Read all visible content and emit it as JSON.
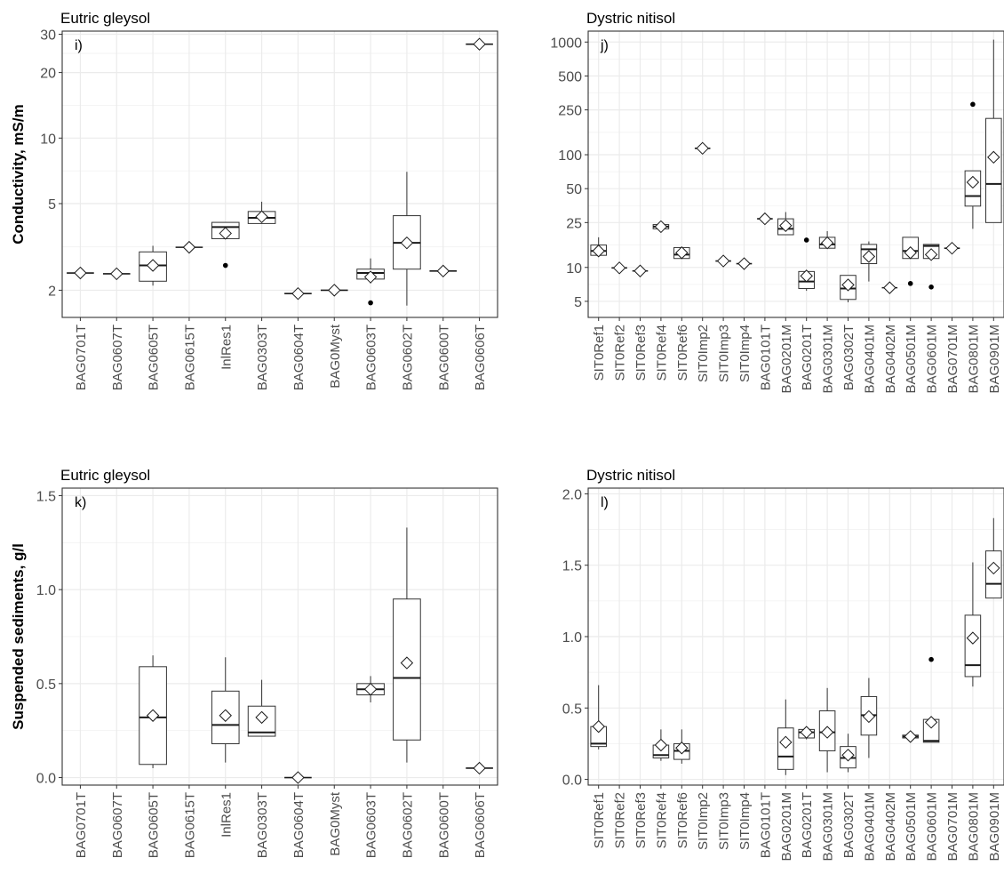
{
  "chart_data": [
    {
      "type": "box",
      "panel": "i)",
      "title": "Eutric gleysol",
      "ylabel": "Conductivity, mS/m",
      "yscale": "log",
      "ylim": [
        1.5,
        31
      ],
      "yticks": [
        2,
        5,
        10,
        20,
        30
      ],
      "categories": [
        "BAG0701T",
        "BAG0607T",
        "BAG0605T",
        "BAG0615T",
        "InlRes1",
        "BAG0303T",
        "BAG0604T",
        "BAG0Myst",
        "BAG0603T",
        "BAG0602T",
        "BAG0600T",
        "BAG0606T"
      ],
      "boxes": [
        {
          "q1": 2.4,
          "median": 2.4,
          "q3": 2.4,
          "lower": 2.4,
          "upper": 2.4,
          "mean": 2.4,
          "outliers": []
        },
        {
          "q1": 2.38,
          "median": 2.38,
          "q3": 2.38,
          "lower": 2.38,
          "upper": 2.38,
          "mean": 2.38,
          "outliers": []
        },
        {
          "q1": 2.2,
          "median": 2.6,
          "q3": 3.0,
          "lower": 2.1,
          "upper": 3.2,
          "mean": 2.6,
          "outliers": []
        },
        {
          "q1": 3.15,
          "median": 3.15,
          "q3": 3.15,
          "lower": 3.15,
          "upper": 3.15,
          "mean": 3.15,
          "outliers": []
        },
        {
          "q1": 3.45,
          "median": 3.9,
          "q3": 4.1,
          "lower": 3.45,
          "upper": 4.1,
          "mean": 3.65,
          "outliers": [
            2.6
          ]
        },
        {
          "q1": 4.05,
          "median": 4.3,
          "q3": 4.6,
          "lower": 4.05,
          "upper": 5.1,
          "mean": 4.35,
          "outliers": []
        },
        {
          "q1": 1.93,
          "median": 1.93,
          "q3": 1.93,
          "lower": 1.93,
          "upper": 1.93,
          "mean": 1.93,
          "outliers": []
        },
        {
          "q1": 2.0,
          "median": 2.0,
          "q3": 2.0,
          "lower": 2.0,
          "upper": 2.0,
          "mean": 2.0,
          "outliers": []
        },
        {
          "q1": 2.25,
          "median": 2.4,
          "q3": 2.5,
          "lower": 2.15,
          "upper": 2.8,
          "mean": 2.3,
          "outliers": [
            1.75
          ]
        },
        {
          "q1": 2.5,
          "median": 3.3,
          "q3": 4.4,
          "lower": 1.7,
          "upper": 7.0,
          "mean": 3.3,
          "outliers": []
        },
        {
          "q1": 2.45,
          "median": 2.45,
          "q3": 2.45,
          "lower": 2.45,
          "upper": 2.45,
          "mean": 2.45,
          "outliers": []
        },
        {
          "q1": 27,
          "median": 27,
          "q3": 27,
          "lower": 27,
          "upper": 27,
          "mean": 27,
          "outliers": []
        }
      ]
    },
    {
      "type": "box",
      "panel": "j)",
      "title": "Dystric nitisol",
      "ylabel": "",
      "yscale": "log",
      "ylim": [
        3.6,
        1250
      ],
      "yticks": [
        5,
        10,
        25,
        50,
        100,
        250,
        500,
        1000
      ],
      "categories": [
        "SIT0Ref1",
        "SIT0Ref2",
        "SIT0Ref3",
        "SIT0Ref4",
        "SIT0Ref6",
        "SIT0Imp2",
        "SIT0Imp3",
        "SIT0Imp4",
        "BAG0101T",
        "BAG0201M",
        "BAG0201T",
        "BAG0301M",
        "BAG0302T",
        "BAG0401M",
        "BAG0402M",
        "BAG0501M",
        "BAG0601M",
        "BAG0701M",
        "BAG0801M",
        "BAG0901M"
      ],
      "boxes": [
        {
          "q1": 12.8,
          "median": 14.0,
          "q3": 15.8,
          "lower": 12.8,
          "upper": 18.5,
          "mean": 14.0,
          "outliers": []
        },
        {
          "q1": 9.9,
          "median": 9.9,
          "q3": 9.9,
          "lower": 9.9,
          "upper": 9.9,
          "mean": 9.9,
          "outliers": []
        },
        {
          "q1": 9.3,
          "median": 9.3,
          "q3": 9.3,
          "lower": 9.3,
          "upper": 9.3,
          "mean": 9.3,
          "outliers": []
        },
        {
          "q1": 22,
          "median": 23,
          "q3": 24,
          "lower": 22,
          "upper": 24,
          "mean": 23,
          "outliers": []
        },
        {
          "q1": 12.0,
          "median": 13.0,
          "q3": 15.0,
          "lower": 12.0,
          "upper": 15.0,
          "mean": 13.5,
          "outliers": []
        },
        {
          "q1": 114,
          "median": 114,
          "q3": 114,
          "lower": 114,
          "upper": 114,
          "mean": 114,
          "outliers": []
        },
        {
          "q1": 11.4,
          "median": 11.4,
          "q3": 11.4,
          "lower": 11.4,
          "upper": 11.4,
          "mean": 11.4,
          "outliers": []
        },
        {
          "q1": 10.8,
          "median": 10.8,
          "q3": 10.8,
          "lower": 10.8,
          "upper": 10.8,
          "mean": 10.8,
          "outliers": []
        },
        {
          "q1": 27,
          "median": 27,
          "q3": 27,
          "lower": 27,
          "upper": 27,
          "mean": 27,
          "outliers": []
        },
        {
          "q1": 19.5,
          "median": 22,
          "q3": 27,
          "lower": 19.5,
          "upper": 31,
          "mean": 23.5,
          "outliers": []
        },
        {
          "q1": 6.5,
          "median": 7.5,
          "q3": 9.2,
          "lower": 6.2,
          "upper": 9.2,
          "mean": 8.4,
          "outliers": [
            17.5
          ]
        },
        {
          "q1": 14.8,
          "median": 16.0,
          "q3": 18.5,
          "lower": 14.8,
          "upper": 21.0,
          "mean": 16.5,
          "outliers": []
        },
        {
          "q1": 5.2,
          "median": 6.5,
          "q3": 8.5,
          "lower": 4.9,
          "upper": 8.5,
          "mean": 7.0,
          "outliers": []
        },
        {
          "q1": 10.8,
          "median": 14.5,
          "q3": 16.0,
          "lower": 7.5,
          "upper": 17.0,
          "mean": 12.5,
          "outliers": []
        },
        {
          "q1": 6.6,
          "median": 6.6,
          "q3": 6.6,
          "lower": 6.6,
          "upper": 6.6,
          "mean": 6.6,
          "outliers": []
        },
        {
          "q1": 12.0,
          "median": 14.0,
          "q3": 18.5,
          "lower": 12.0,
          "upper": 18.5,
          "mean": 13.5,
          "outliers": [
            7.2
          ]
        },
        {
          "q1": 12.0,
          "median": 15.5,
          "q3": 16.0,
          "lower": 12.0,
          "upper": 16.0,
          "mean": 13.0,
          "outliers": [
            6.7
          ]
        },
        {
          "q1": 14.8,
          "median": 14.8,
          "q3": 14.8,
          "lower": 14.8,
          "upper": 14.8,
          "mean": 14.8,
          "outliers": []
        },
        {
          "q1": 35,
          "median": 43,
          "q3": 72,
          "lower": 22,
          "upper": 72,
          "mean": 57,
          "outliers": [
            280
          ]
        },
        {
          "q1": 25,
          "median": 55,
          "q3": 210,
          "lower": 25,
          "upper": 1050,
          "mean": 95,
          "outliers": []
        }
      ]
    },
    {
      "type": "box",
      "panel": "k)",
      "title": "Eutric gleysol",
      "ylabel": "Suspended sediments, g/l",
      "yscale": "linear",
      "ylim": [
        -0.04,
        1.54
      ],
      "yticks": [
        0.0,
        0.5,
        1.0,
        1.5
      ],
      "ytick_labels": [
        "0.0",
        "0.5",
        "1.0",
        "1.5"
      ],
      "categories": [
        "BAG0701T",
        "BAG0607T",
        "BAG0605T",
        "BAG0615T",
        "InlRes1",
        "BAG0303T",
        "BAG0604T",
        "BAG0Myst",
        "BAG0603T",
        "BAG0602T",
        "BAG0600T",
        "BAG0606T"
      ],
      "boxes": [
        null,
        null,
        {
          "q1": 0.07,
          "median": 0.32,
          "q3": 0.59,
          "lower": 0.05,
          "upper": 0.65,
          "mean": 0.33,
          "outliers": []
        },
        null,
        {
          "q1": 0.18,
          "median": 0.28,
          "q3": 0.46,
          "lower": 0.08,
          "upper": 0.64,
          "mean": 0.33,
          "outliers": []
        },
        {
          "q1": 0.22,
          "median": 0.24,
          "q3": 0.38,
          "lower": 0.22,
          "upper": 0.52,
          "mean": 0.32,
          "outliers": []
        },
        {
          "q1": 0.0,
          "median": 0.0,
          "q3": 0.0,
          "lower": 0.0,
          "upper": 0.0,
          "mean": 0.0,
          "outliers": []
        },
        null,
        {
          "q1": 0.44,
          "median": 0.47,
          "q3": 0.5,
          "lower": 0.4,
          "upper": 0.54,
          "mean": 0.47,
          "outliers": []
        },
        {
          "q1": 0.2,
          "median": 0.53,
          "q3": 0.95,
          "lower": 0.08,
          "upper": 1.33,
          "mean": 0.61,
          "outliers": []
        },
        null,
        {
          "q1": 0.05,
          "median": 0.05,
          "q3": 0.05,
          "lower": 0.05,
          "upper": 0.05,
          "mean": 0.05,
          "outliers": []
        }
      ]
    },
    {
      "type": "box",
      "panel": "l)",
      "title": "Dystric nitisol",
      "ylabel": "",
      "yscale": "linear",
      "ylim": [
        -0.04,
        2.04
      ],
      "yticks": [
        0.0,
        0.5,
        1.0,
        1.5,
        2.0
      ],
      "ytick_labels": [
        "0.0",
        "0.5",
        "1.0",
        "1.5",
        "2.0"
      ],
      "categories": [
        "SIT0Ref1",
        "SIT0Ref2",
        "SIT0Ref3",
        "SIT0Ref4",
        "SIT0Ref6",
        "SIT0Imp2",
        "SIT0Imp3",
        "SIT0Imp4",
        "BAG0101T",
        "BAG0201M",
        "BAG0201T",
        "BAG0301M",
        "BAG0302T",
        "BAG0401M",
        "BAG0402M",
        "BAG0501M",
        "BAG0601M",
        "BAG0701M",
        "BAG0801M",
        "BAG0901M"
      ],
      "boxes": [
        {
          "q1": 0.23,
          "median": 0.25,
          "q3": 0.37,
          "lower": 0.21,
          "upper": 0.66,
          "mean": 0.37,
          "outliers": []
        },
        null,
        null,
        {
          "q1": 0.15,
          "median": 0.17,
          "q3": 0.24,
          "lower": 0.13,
          "upper": 0.35,
          "mean": 0.24,
          "outliers": []
        },
        {
          "q1": 0.14,
          "median": 0.2,
          "q3": 0.25,
          "lower": 0.11,
          "upper": 0.35,
          "mean": 0.22,
          "outliers": []
        },
        null,
        null,
        null,
        null,
        {
          "q1": 0.07,
          "median": 0.16,
          "q3": 0.36,
          "lower": 0.03,
          "upper": 0.56,
          "mean": 0.26,
          "outliers": []
        },
        {
          "q1": 0.29,
          "median": 0.33,
          "q3": 0.35,
          "lower": 0.28,
          "upper": 0.37,
          "mean": 0.33,
          "outliers": []
        },
        {
          "q1": 0.2,
          "median": 0.33,
          "q3": 0.48,
          "lower": 0.05,
          "upper": 0.64,
          "mean": 0.33,
          "outliers": []
        },
        {
          "q1": 0.08,
          "median": 0.15,
          "q3": 0.23,
          "lower": 0.05,
          "upper": 0.32,
          "mean": 0.17,
          "outliers": []
        },
        {
          "q1": 0.31,
          "median": 0.45,
          "q3": 0.58,
          "lower": 0.15,
          "upper": 0.71,
          "mean": 0.44,
          "outliers": []
        },
        null,
        {
          "q1": 0.29,
          "median": 0.3,
          "q3": 0.31,
          "lower": 0.28,
          "upper": 0.32,
          "mean": 0.3,
          "outliers": []
        },
        {
          "q1": 0.26,
          "median": 0.27,
          "q3": 0.42,
          "lower": 0.26,
          "upper": 0.42,
          "mean": 0.4,
          "outliers": [
            0.84
          ]
        },
        null,
        {
          "q1": 0.72,
          "median": 0.8,
          "q3": 1.15,
          "lower": 0.65,
          "upper": 1.52,
          "mean": 0.99,
          "outliers": []
        },
        {
          "q1": 1.27,
          "median": 1.37,
          "q3": 1.6,
          "lower": 1.27,
          "upper": 1.83,
          "mean": 1.48,
          "outliers": []
        }
      ]
    }
  ]
}
